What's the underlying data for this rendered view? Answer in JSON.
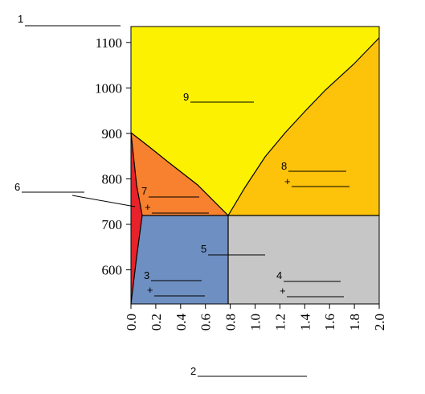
{
  "title_blank": {
    "number": "1"
  },
  "xaxis_blank": {
    "number": "2"
  },
  "yaxis": {
    "ticks": [
      600,
      700,
      800,
      900,
      1000,
      1100
    ],
    "range": [
      525,
      1135
    ]
  },
  "xaxis": {
    "ticks": [
      "0.0",
      "0.2",
      "0.4",
      "0.6",
      "0.8",
      "1.0",
      "1.2",
      "1.4",
      "1.6",
      "1.8",
      "2.0"
    ],
    "range": [
      0,
      2.0
    ]
  },
  "colors": {
    "region_3": "#6e8fc2",
    "region_4": "#c6c6c6",
    "region_6": "#e8222a",
    "region_7": "#f7812e",
    "region_8": "#fdc20a",
    "region_9": "#fbf100"
  },
  "regions": [
    {
      "id": "9",
      "number": "9",
      "has_plus": false
    },
    {
      "id": "8",
      "number": "8",
      "has_plus": true,
      "plus": "+"
    },
    {
      "id": "7",
      "number": "7",
      "has_plus": true,
      "plus": "+"
    },
    {
      "id": "6",
      "number": "6",
      "has_plus": false
    },
    {
      "id": "5",
      "number": "5",
      "has_plus": false
    },
    {
      "id": "3",
      "number": "3",
      "has_plus": true,
      "plus": "+"
    },
    {
      "id": "4",
      "number": "4",
      "has_plus": true,
      "plus": "+"
    }
  ]
}
